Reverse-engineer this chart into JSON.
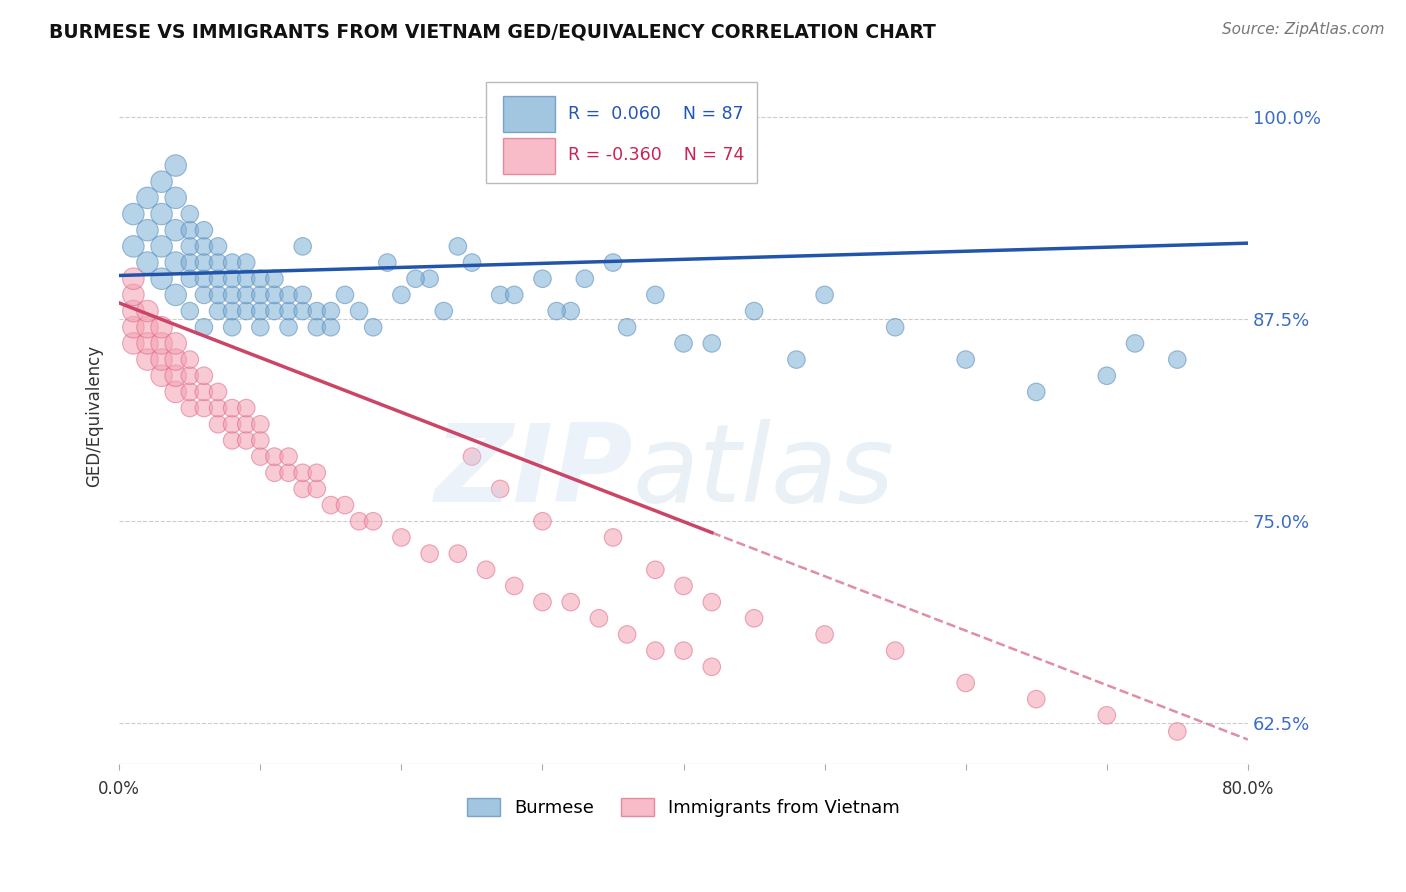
{
  "title": "BURMESE VS IMMIGRANTS FROM VIETNAM GED/EQUIVALENCY CORRELATION CHART",
  "source": "Source: ZipAtlas.com",
  "ylabel": "GED/Equivalency",
  "xlim": [
    0.0,
    80.0
  ],
  "ylim": [
    60.0,
    103.0
  ],
  "yticks": [
    62.5,
    75.0,
    87.5,
    100.0
  ],
  "ytick_labels": [
    "62.5%",
    "75.0%",
    "87.5%",
    "100.0%"
  ],
  "blue_label": "Burmese",
  "pink_label": "Immigrants from Vietnam",
  "blue_R": "0.060",
  "blue_N": "87",
  "pink_R": "-0.360",
  "pink_N": "74",
  "blue_color": "#7BAFD4",
  "pink_color": "#F4A0B0",
  "blue_edge_color": "#5588BB",
  "pink_edge_color": "#DD6688",
  "blue_line_color": "#2255AA",
  "pink_line_color": "#CC4466",
  "bg_color": "#FFFFFF",
  "grid_color": "#CCCCCC",
  "watermark_zip": "ZIP",
  "watermark_atlas": "atlas",
  "blue_scatter_x": [
    1,
    1,
    2,
    2,
    2,
    3,
    3,
    3,
    3,
    4,
    4,
    4,
    4,
    4,
    5,
    5,
    5,
    5,
    5,
    5,
    6,
    6,
    6,
    6,
    6,
    6,
    7,
    7,
    7,
    7,
    7,
    8,
    8,
    8,
    8,
    8,
    9,
    9,
    9,
    9,
    10,
    10,
    10,
    10,
    11,
    11,
    11,
    12,
    12,
    12,
    13,
    13,
    14,
    14,
    15,
    15,
    16,
    17,
    18,
    20,
    22,
    23,
    25,
    27,
    30,
    32,
    35,
    38,
    40,
    45,
    50,
    55,
    60,
    65,
    70,
    72,
    75,
    13,
    19,
    21,
    24,
    28,
    31,
    33,
    36,
    42,
    48
  ],
  "blue_scatter_y": [
    92,
    94,
    91,
    93,
    95,
    90,
    92,
    94,
    96,
    89,
    91,
    93,
    95,
    97,
    88,
    90,
    91,
    92,
    93,
    94,
    87,
    89,
    90,
    91,
    92,
    93,
    88,
    89,
    90,
    91,
    92,
    87,
    88,
    89,
    90,
    91,
    88,
    89,
    90,
    91,
    87,
    88,
    89,
    90,
    88,
    89,
    90,
    87,
    88,
    89,
    88,
    89,
    87,
    88,
    87,
    88,
    89,
    88,
    87,
    89,
    90,
    88,
    91,
    89,
    90,
    88,
    91,
    89,
    86,
    88,
    89,
    87,
    85,
    83,
    84,
    86,
    85,
    92,
    91,
    90,
    92,
    89,
    88,
    90,
    87,
    86,
    85
  ],
  "pink_scatter_x": [
    1,
    1,
    1,
    1,
    1,
    2,
    2,
    2,
    2,
    3,
    3,
    3,
    3,
    4,
    4,
    4,
    4,
    5,
    5,
    5,
    5,
    6,
    6,
    6,
    7,
    7,
    7,
    8,
    8,
    8,
    9,
    9,
    9,
    10,
    10,
    10,
    11,
    11,
    12,
    12,
    13,
    13,
    14,
    14,
    15,
    16,
    17,
    18,
    20,
    22,
    24,
    26,
    28,
    30,
    32,
    34,
    36,
    38,
    40,
    42,
    25,
    27,
    30,
    35,
    38,
    40,
    42,
    45,
    50,
    55,
    60,
    65,
    70,
    75
  ],
  "pink_scatter_y": [
    86,
    87,
    88,
    89,
    90,
    85,
    86,
    87,
    88,
    84,
    85,
    86,
    87,
    83,
    84,
    85,
    86,
    82,
    83,
    84,
    85,
    82,
    83,
    84,
    81,
    82,
    83,
    80,
    81,
    82,
    80,
    81,
    82,
    79,
    80,
    81,
    78,
    79,
    78,
    79,
    77,
    78,
    77,
    78,
    76,
    76,
    75,
    75,
    74,
    73,
    73,
    72,
    71,
    70,
    70,
    69,
    68,
    67,
    67,
    66,
    79,
    77,
    75,
    74,
    72,
    71,
    70,
    69,
    68,
    67,
    65,
    64,
    63,
    62
  ],
  "blue_reg_x0": 0,
  "blue_reg_x1": 80,
  "blue_reg_y0": 90.2,
  "blue_reg_y1": 92.2,
  "pink_reg_x0": 0,
  "pink_reg_x1": 80,
  "pink_reg_y0": 88.5,
  "pink_reg_y1": 61.5,
  "pink_solid_end_x": 42,
  "pink_solid_end_y": 74.3,
  "figsize": [
    14.06,
    8.92
  ],
  "dpi": 100
}
